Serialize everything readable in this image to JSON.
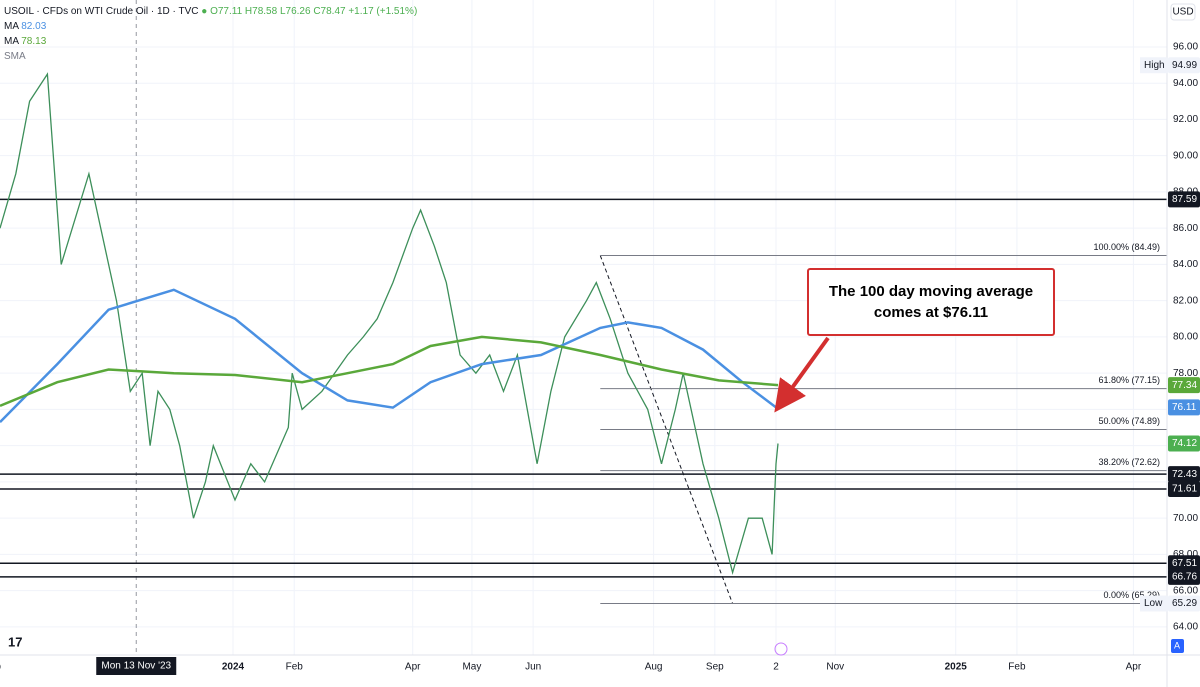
{
  "header": {
    "symbol": "USOIL · CFDs on WTI Crude Oil · 1D · TVC",
    "ohlc": "O77.11 H78.58 L76.26 C78.47 +1.17 (+1.51%)",
    "indicators": [
      {
        "name": "MA",
        "value": "82.03"
      },
      {
        "name": "MA",
        "value": "78.13"
      },
      {
        "name": "SMA"
      }
    ]
  },
  "currency": "USD",
  "chart_data": {
    "type": "line",
    "annotation": "The 100 day moving average comes at $76.11",
    "crosshair": {
      "x": "2023-11-13",
      "label": "Mon 13 Nov '23"
    },
    "xlim": [
      "2023-09-05",
      "2025-04-18"
    ],
    "xticks": [
      {
        "value": "2023-09-01",
        "label": "Sep"
      },
      {
        "value": "2024-01-01",
        "label": "2024"
      },
      {
        "value": "2024-02-01",
        "label": "Feb"
      },
      {
        "value": "2024-04-01",
        "label": "Apr"
      },
      {
        "value": "2024-05-01",
        "label": "May"
      },
      {
        "value": "2024-06-01",
        "label": "Jun"
      },
      {
        "value": "2024-08-01",
        "label": "Aug"
      },
      {
        "value": "2024-09-01",
        "label": "Sep"
      },
      {
        "value": "2024-10-02",
        "label": "2"
      },
      {
        "value": "2024-11-01",
        "label": "Nov"
      },
      {
        "value": "2025-01-01",
        "label": "2025"
      },
      {
        "value": "2025-02-01",
        "label": "Feb"
      },
      {
        "value": "2025-04-01",
        "label": "Apr"
      }
    ],
    "ylim": [
      62.45,
      98.59
    ],
    "yticks": [
      {
        "value": 64,
        "label": "64.00"
      },
      {
        "value": 66,
        "label": "66.00"
      },
      {
        "value": 68,
        "label": "68.00"
      },
      {
        "value": 70,
        "label": "70.00"
      },
      {
        "value": 72,
        "label": "72.00"
      },
      {
        "value": 74,
        "label": "74.00"
      },
      {
        "value": 76,
        "label": "76.00"
      },
      {
        "value": 78,
        "label": "78.00"
      },
      {
        "value": 80,
        "label": "80.00"
      },
      {
        "value": 82,
        "label": "82.00"
      },
      {
        "value": 84,
        "label": "84.00"
      },
      {
        "value": 86,
        "label": "86.00"
      },
      {
        "value": 88,
        "label": "88.00"
      },
      {
        "value": 90,
        "label": "90.00"
      },
      {
        "value": 92,
        "label": "92.00"
      },
      {
        "value": 94,
        "label": "94.00"
      },
      {
        "value": 96,
        "label": "96.00"
      }
    ],
    "series": [
      {
        "color": "#3d8f5a",
        "width": 1.3,
        "x": [
          "2023-09-05",
          "2023-09-13",
          "2023-09-20",
          "2023-09-29",
          "2023-10-06",
          "2023-10-20",
          "2023-11-03",
          "2023-11-10",
          "2023-11-16",
          "2023-11-20",
          "2023-11-24",
          "2023-11-30",
          "2023-12-05",
          "2023-12-12",
          "2023-12-18",
          "2023-12-22",
          "2024-01-02",
          "2024-01-10",
          "2024-01-17",
          "2024-01-29",
          "2024-01-31",
          "2024-02-05",
          "2024-02-15",
          "2024-02-28",
          "2024-03-07",
          "2024-03-14",
          "2024-03-22",
          "2024-04-01",
          "2024-04-05",
          "2024-04-12",
          "2024-04-18",
          "2024-04-25",
          "2024-05-03",
          "2024-05-10",
          "2024-05-17",
          "2024-05-24",
          "2024-06-03",
          "2024-06-10",
          "2024-06-17",
          "2024-06-28",
          "2024-07-03",
          "2024-07-10",
          "2024-07-19",
          "2024-07-29",
          "2024-08-05",
          "2024-08-12",
          "2024-08-16",
          "2024-08-26",
          "2024-09-03",
          "2024-09-10",
          "2024-09-18",
          "2024-09-25",
          "2024-09-30",
          "2024-10-02",
          "2024-10-03"
        ],
        "values": [
          86,
          89,
          93,
          94.5,
          84,
          89,
          82,
          77,
          78,
          74,
          77,
          76,
          74,
          70,
          72,
          74,
          71,
          73,
          72,
          75,
          78,
          76,
          77,
          79,
          80,
          81,
          83,
          86,
          87,
          85,
          83,
          79,
          78,
          79,
          77,
          79,
          73,
          77,
          80,
          82,
          83,
          81,
          78,
          76,
          73,
          76,
          78,
          73,
          70,
          67,
          70,
          70,
          68,
          73,
          74.12
        ]
      },
      {
        "color": "#4a90e2",
        "width": 2.5,
        "x": [
          "2023-09-05",
          "2023-10-04",
          "2023-10-30",
          "2023-12-02",
          "2024-01-02",
          "2024-02-05",
          "2024-02-28",
          "2024-03-22",
          "2024-04-10",
          "2024-05-06",
          "2024-06-05",
          "2024-07-05",
          "2024-07-19",
          "2024-08-05",
          "2024-08-26",
          "2024-09-15",
          "2024-10-02"
        ],
        "values": [
          75.3,
          78.5,
          81.5,
          82.6,
          81,
          78,
          76.5,
          76.1,
          77.5,
          78.5,
          79,
          80.5,
          80.8,
          80.5,
          79.3,
          77.5,
          76.11
        ]
      },
      {
        "color": "#5aa83a",
        "width": 2.5,
        "x": [
          "2023-09-05",
          "2023-10-04",
          "2023-10-30",
          "2023-12-02",
          "2024-01-02",
          "2024-02-05",
          "2024-02-28",
          "2024-03-22",
          "2024-04-10",
          "2024-05-06",
          "2024-06-05",
          "2024-07-05",
          "2024-08-05",
          "2024-09-03",
          "2024-10-03"
        ],
        "values": [
          76.2,
          77.5,
          78.2,
          78,
          77.9,
          77.5,
          78,
          78.5,
          79.5,
          80,
          79.7,
          79,
          78.2,
          77.6,
          77.34
        ]
      }
    ],
    "levels": [
      87.59,
      72.43,
      71.61,
      67.51,
      66.76
    ],
    "fib": {
      "start": "2024-07-05",
      "end": "2024-09-10",
      "high": 84.49,
      "low": 65.29,
      "levels": [
        {
          "value": 84.49,
          "label": "100.00% (84.49)"
        },
        {
          "value": 77.15,
          "label": "61.80% (77.15)"
        },
        {
          "value": 74.89,
          "label": "50.00% (74.89)"
        },
        {
          "value": 72.62,
          "label": "38.20% (72.62)"
        },
        {
          "value": 65.29,
          "label": "0.00% (65.29)"
        }
      ]
    },
    "price_tags": [
      {
        "value": 94.99,
        "caption": "High",
        "bg": "#f0f3fa",
        "fg": "#131722"
      },
      {
        "value": 87.59,
        "bg": "#131722",
        "fg": "#ffffff"
      },
      {
        "value": 77.34,
        "bg": "#5aa83a",
        "fg": "#ffffff"
      },
      {
        "value": 76.11,
        "bg": "#4a90e2",
        "fg": "#ffffff"
      },
      {
        "value": 74.12,
        "bg": "#4caf50",
        "fg": "#ffffff"
      },
      {
        "value": 72.43,
        "bg": "#131722",
        "fg": "#ffffff"
      },
      {
        "value": 71.61,
        "bg": "#131722",
        "fg": "#ffffff"
      },
      {
        "value": 67.51,
        "bg": "#131722",
        "fg": "#ffffff"
      },
      {
        "value": 66.76,
        "bg": "#131722",
        "fg": "#ffffff"
      },
      {
        "value": 65.29,
        "caption": "Low",
        "bg": "#f0f3fa",
        "fg": "#131722"
      }
    ]
  }
}
